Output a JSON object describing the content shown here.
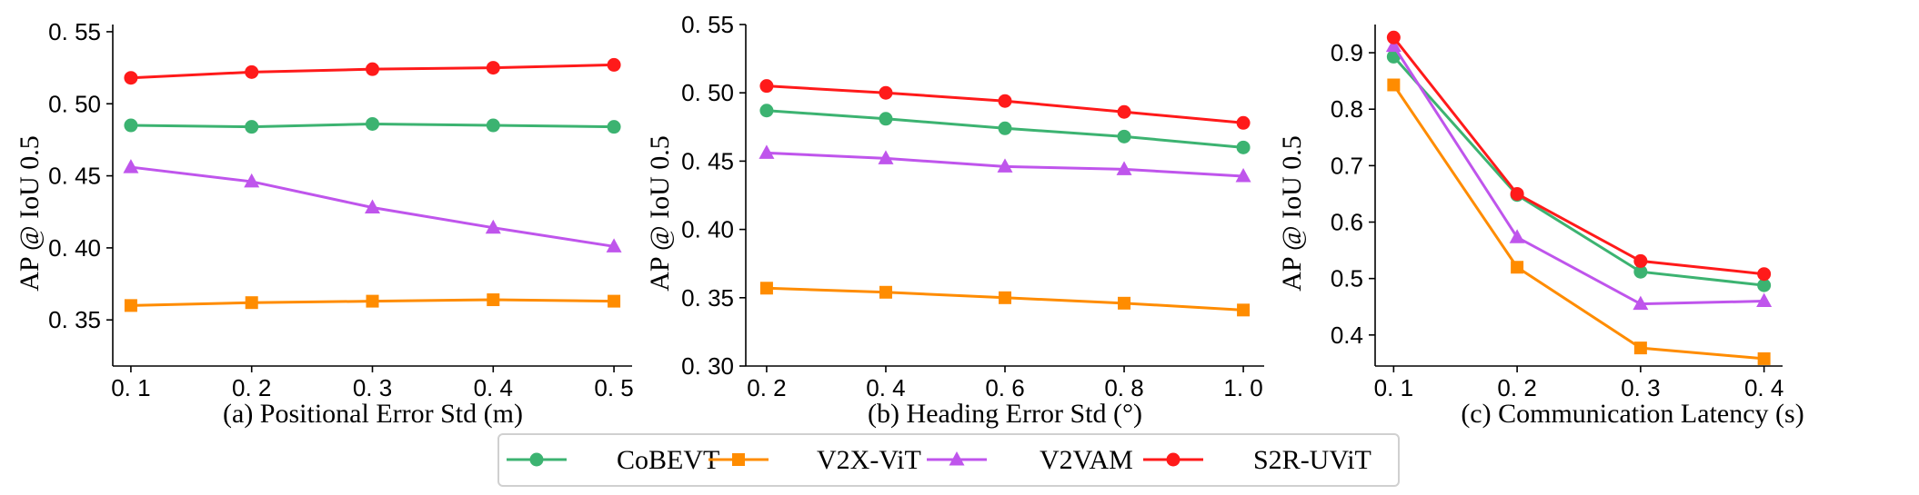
{
  "colors": {
    "CoBEVT": "#3cb371",
    "V2X-ViT": "#ff8c00",
    "V2VAM": "#bf55ec",
    "S2R-UViT": "#ff1a1a"
  },
  "legend": {
    "placement": "bottom-center",
    "entries": [
      {
        "name": "CoBEVT",
        "marker": "circle"
      },
      {
        "name": "V2X-ViT",
        "marker": "square"
      },
      {
        "name": "V2VAM",
        "marker": "triangle"
      },
      {
        "name": "S2R-UViT",
        "marker": "circle"
      }
    ]
  },
  "chart_data": [
    {
      "type": "line",
      "title": "",
      "xlabel": "(a) Positional Error Std (m)",
      "ylabel": "AP @ IoU 0.5",
      "x": [
        0.1,
        0.2,
        0.3,
        0.4,
        0.5
      ],
      "xticks": [
        "0. 1",
        "0. 2",
        "0. 3",
        "0. 4",
        "0. 5"
      ],
      "yticks": [
        0.35,
        0.4,
        0.45,
        0.5,
        0.55
      ],
      "ytick_labels": [
        "0. 35",
        "0. 40",
        "0. 45",
        "0. 50",
        "0. 55"
      ],
      "xlim": [
        0.085,
        0.515
      ],
      "ylim": [
        0.318,
        0.555
      ],
      "grid": false,
      "series": [
        {
          "name": "CoBEVT",
          "values": [
            0.485,
            0.484,
            0.486,
            0.485,
            0.484
          ]
        },
        {
          "name": "V2X-ViT",
          "values": [
            0.36,
            0.362,
            0.363,
            0.364,
            0.363
          ]
        },
        {
          "name": "V2VAM",
          "values": [
            0.456,
            0.446,
            0.428,
            0.414,
            0.401
          ]
        },
        {
          "name": "S2R-UViT",
          "values": [
            0.518,
            0.522,
            0.524,
            0.525,
            0.527
          ]
        }
      ]
    },
    {
      "type": "line",
      "title": "",
      "xlabel": "(b) Heading Error Std (°)",
      "ylabel": "AP @ IoU 0.5",
      "x": [
        0.2,
        0.4,
        0.6,
        0.8,
        1.0
      ],
      "xticks": [
        "0. 2",
        "0. 4",
        "0. 6",
        "0. 8",
        "1. 0"
      ],
      "yticks": [
        0.3,
        0.35,
        0.4,
        0.45,
        0.5,
        0.55
      ],
      "ytick_labels": [
        "0. 30",
        "0. 35",
        "0. 40",
        "0. 45",
        "0. 50",
        "0. 55"
      ],
      "xlim": [
        0.165,
        1.035
      ],
      "ylim": [
        0.3,
        0.55
      ],
      "grid": false,
      "series": [
        {
          "name": "CoBEVT",
          "values": [
            0.487,
            0.481,
            0.474,
            0.468,
            0.46
          ]
        },
        {
          "name": "V2X-ViT",
          "values": [
            0.357,
            0.354,
            0.35,
            0.346,
            0.341
          ]
        },
        {
          "name": "V2VAM",
          "values": [
            0.456,
            0.452,
            0.446,
            0.444,
            0.439
          ]
        },
        {
          "name": "S2R-UViT",
          "values": [
            0.505,
            0.5,
            0.494,
            0.486,
            0.478
          ]
        }
      ]
    },
    {
      "type": "line",
      "title": "",
      "xlabel": "(c) Communication Latency (s)",
      "ylabel": "AP @ IoU 0.5",
      "x": [
        0.1,
        0.2,
        0.3,
        0.4
      ],
      "xticks": [
        "0. 1",
        "0. 2",
        "0. 3",
        "0. 4"
      ],
      "yticks": [
        0.4,
        0.5,
        0.6,
        0.7,
        0.8,
        0.9
      ],
      "ytick_labels": [
        "0.4",
        "0.5",
        "0.6",
        "0.7",
        "0.8",
        "0.9"
      ],
      "xlim": [
        0.085,
        0.415
      ],
      "ylim": [
        0.345,
        0.95
      ],
      "grid": false,
      "series": [
        {
          "name": "CoBEVT",
          "values": [
            0.893,
            0.648,
            0.512,
            0.488
          ]
        },
        {
          "name": "V2X-ViT",
          "values": [
            0.843,
            0.52,
            0.377,
            0.358
          ]
        },
        {
          "name": "V2VAM",
          "values": [
            0.912,
            0.573,
            0.455,
            0.46
          ]
        },
        {
          "name": "S2R-UViT",
          "values": [
            0.927,
            0.65,
            0.531,
            0.508
          ]
        }
      ]
    }
  ]
}
